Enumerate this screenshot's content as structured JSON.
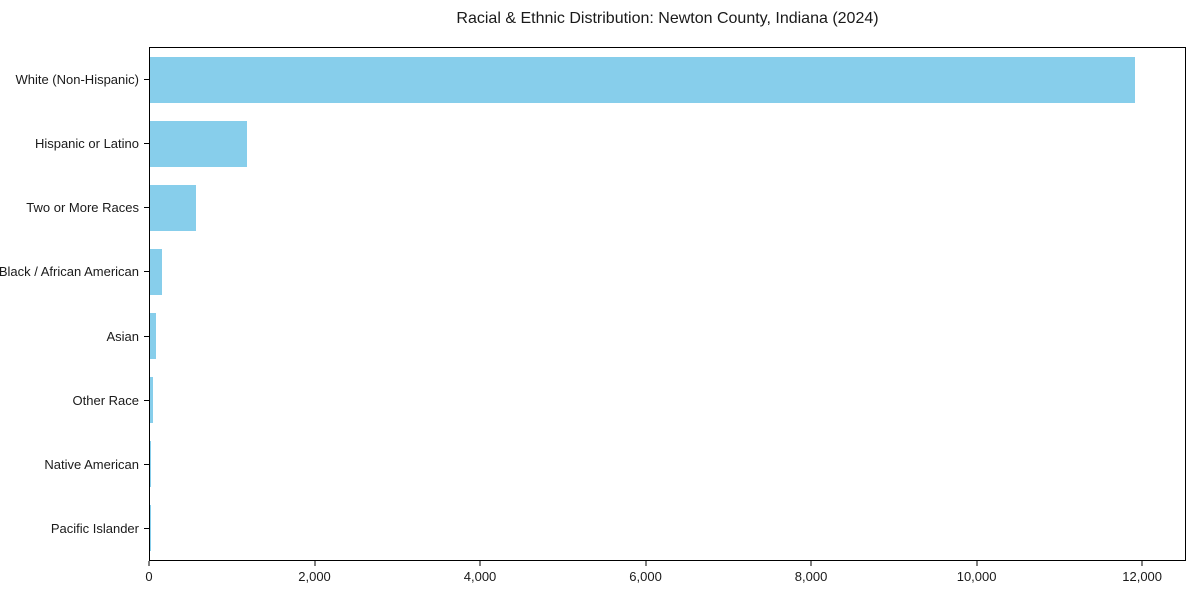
{
  "colors": {
    "bar": "#87CEEB",
    "axis": "#000000",
    "text": "#1a1a1a",
    "background": "#ffffff"
  },
  "chart_data": {
    "type": "bar",
    "orientation": "horizontal",
    "title": "Racial & Ethnic Distribution: Newton County, Indiana (2024)",
    "xlabel": "",
    "ylabel": "",
    "categories": [
      "White (Non-Hispanic)",
      "Hispanic or Latino",
      "Two or More Races",
      "Black / African American",
      "Asian",
      "Other Race",
      "Native American",
      "Pacific Islander"
    ],
    "values": [
      11930,
      1180,
      560,
      145,
      72,
      40,
      15,
      4
    ],
    "xlim": [
      0,
      12530
    ],
    "x_ticks": [
      0,
      2000,
      4000,
      6000,
      8000,
      10000,
      12000
    ],
    "x_tick_labels": [
      "0",
      "2,000",
      "4,000",
      "6,000",
      "8,000",
      "10,000",
      "12,000"
    ],
    "grid": false,
    "legend": false
  }
}
